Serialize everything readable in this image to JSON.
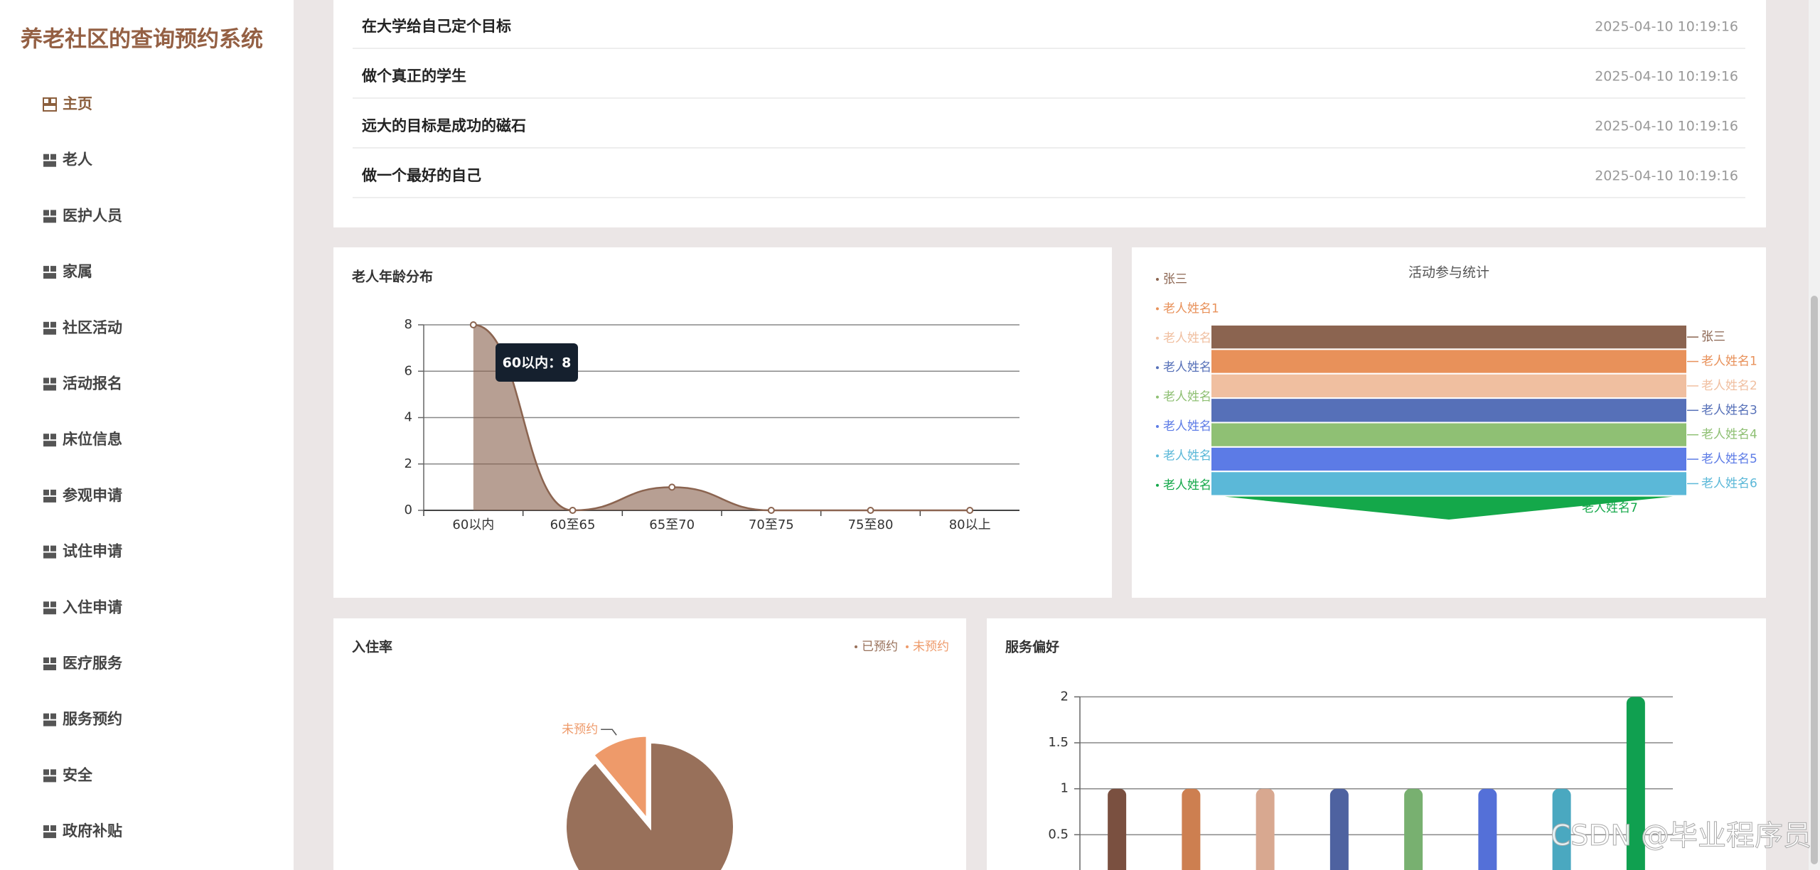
{
  "sidebar": {
    "title": "养老社区的查询预约系统",
    "menu": [
      "主页",
      "老人",
      "医护人员",
      "家属",
      "社区活动",
      "活动报名",
      "床位信息",
      "参观申请",
      "试住申请",
      "入住申请",
      "医疗服务",
      "服务预约",
      "安全",
      "政府补贴"
    ]
  },
  "news": [
    {
      "title": "在大学给自己定个目标",
      "time": "2025-04-10 10:19:16"
    },
    {
      "title": "做个真正的学生",
      "time": "2025-04-10 10:19:16"
    },
    {
      "title": "远大的目标是成功的磁石",
      "time": "2025-04-10 10:19:16"
    },
    {
      "title": "做一个最好的自己",
      "time": "2025-04-10 10:19:16"
    }
  ],
  "chart_data": [
    {
      "type": "line",
      "title": "老人年龄分布",
      "categories": [
        "60以内",
        "60至65",
        "65至70",
        "70至75",
        "75至80",
        "80以上"
      ],
      "values": [
        8,
        0,
        1,
        0,
        0,
        0
      ],
      "color": "#8b6450",
      "ylim": [
        0,
        8
      ],
      "yticks": [
        0,
        2,
        4,
        6,
        8
      ],
      "grid": true,
      "tooltip": "60以内：8"
    },
    {
      "type": "funnel",
      "title": "活动参与统计",
      "categories": [
        "张三",
        "老人姓名1",
        "老人姓名2",
        "老人姓名3",
        "老人姓名4",
        "老人姓名5",
        "老人姓名6",
        "老人姓名7"
      ],
      "values": [
        1,
        1,
        1,
        1,
        1,
        1,
        1,
        1
      ],
      "colors": [
        "#8b6450",
        "#e8915a",
        "#f0bfa0",
        "#5670b8",
        "#8fc074",
        "#5c7be6",
        "#5bb8d8",
        "#14a84a"
      ]
    },
    {
      "type": "pie",
      "title": "入住率",
      "categories": [
        "已预约",
        "未预约"
      ],
      "values": [
        8,
        1
      ],
      "colors": [
        "#98705a",
        "#ee9a6a"
      ]
    },
    {
      "type": "bar",
      "title": "服务偏好",
      "categories": [
        null,
        null,
        null,
        null,
        null,
        null,
        null,
        null
      ],
      "values": [
        1,
        1,
        1,
        1,
        1,
        1,
        1,
        2
      ],
      "colors": [
        "#7a5040",
        "#cd7f50",
        "#d8a890",
        "#4e62a0",
        "#78b070",
        "#5470d8",
        "#4aa8c0",
        "#10a050"
      ],
      "ylim": [
        0,
        2
      ],
      "yticks": [
        0.5,
        1,
        1.5,
        2
      ],
      "grid": true
    }
  ],
  "watermark": "CSDN @毕业程序员"
}
